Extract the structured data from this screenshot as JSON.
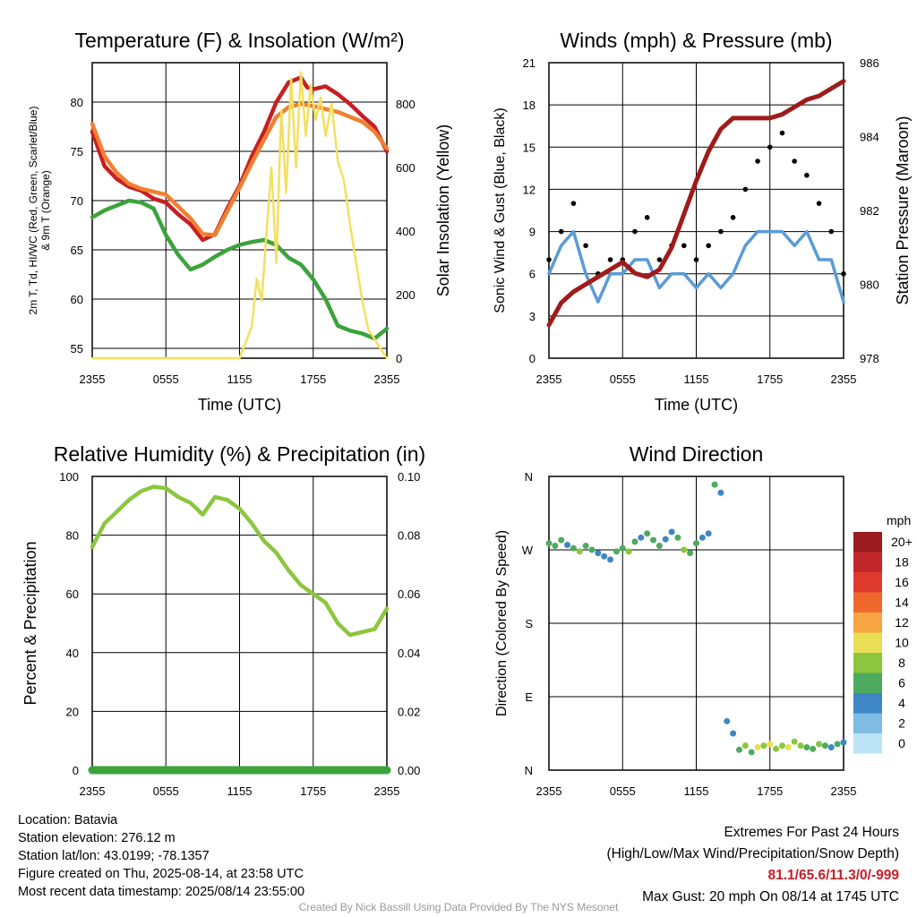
{
  "chart_data": [
    {
      "type": "line",
      "title": "Temperature (F) & Insolation (W/m²)",
      "xlabel": "Time (UTC)",
      "ylabel": "2m T, Td, HI/WC (Red, Green, Scarlet/Blue) & 9m T (Orange)",
      "y2label": "Solar Insolation (Yellow)",
      "xticks": [
        "2355",
        "0555",
        "1155",
        "1755",
        "2355"
      ],
      "yticks": [
        55,
        60,
        65,
        70,
        75,
        80
      ],
      "y2ticks": [
        0,
        200,
        400,
        600,
        800
      ],
      "ylim": [
        54,
        84
      ],
      "y2lim": [
        0,
        930
      ],
      "xlim": [
        0,
        24
      ],
      "series": [
        {
          "name": "2m T",
          "color": "#c81e23",
          "x": [
            0,
            1,
            2,
            3,
            4,
            5,
            6,
            7,
            8,
            9,
            10,
            11,
            12,
            13,
            14,
            15,
            16,
            17,
            17.5,
            18,
            19,
            20,
            21,
            22,
            23,
            24
          ],
          "values": [
            77,
            73.5,
            72.2,
            71.4,
            71,
            70.2,
            69.8,
            68.6,
            67.6,
            66,
            66.6,
            69.2,
            71.5,
            74.5,
            77,
            80,
            82,
            82.5,
            81.5,
            81.3,
            81.6,
            80.8,
            79.8,
            78.6,
            77.5,
            75
          ]
        },
        {
          "name": "9m T",
          "color": "#f08030",
          "x": [
            0,
            1,
            2,
            3,
            4,
            5,
            6,
            7,
            8,
            9,
            10,
            11,
            12,
            13,
            14,
            15,
            16,
            17,
            18,
            19,
            20,
            21,
            22,
            23,
            24
          ],
          "values": [
            77.8,
            74.5,
            72.8,
            71.7,
            71.2,
            70.9,
            70.6,
            69.4,
            68.2,
            66.6,
            66.5,
            68.9,
            71.3,
            73.8,
            76.2,
            78.5,
            79.5,
            79.8,
            79.6,
            79.3,
            79,
            78.5,
            78,
            77,
            75.3
          ]
        },
        {
          "name": "Td",
          "color": "#3ca33c",
          "x": [
            0,
            1,
            2,
            3,
            4,
            5,
            6,
            7,
            8,
            9,
            10,
            11,
            12,
            13,
            14,
            15,
            16,
            17,
            18,
            19,
            20,
            21,
            22,
            23,
            24
          ],
          "values": [
            68.3,
            69,
            69.5,
            70,
            69.8,
            69.2,
            66.5,
            64.5,
            63,
            63.5,
            64.3,
            65,
            65.5,
            65.8,
            66,
            65.5,
            64.2,
            63.5,
            62,
            60,
            57.3,
            56.8,
            56.5,
            56,
            57
          ]
        },
        {
          "name": "Solar Insolation",
          "axis": "y2",
          "color": "#f4e060",
          "x": [
            0,
            1,
            2,
            3,
            4,
            5,
            6,
            7,
            8,
            9,
            10,
            11,
            12,
            13,
            13.4,
            13.8,
            14.2,
            14.6,
            15,
            15.4,
            15.8,
            16.2,
            16.6,
            17,
            17.4,
            17.8,
            18.2,
            18.6,
            19,
            19.5,
            20,
            20.5,
            21,
            21.5,
            22,
            22.5,
            23,
            23.5,
            24
          ],
          "values": [
            0,
            0,
            0,
            0,
            0,
            0,
            0,
            0,
            0,
            0,
            0,
            0,
            0,
            100,
            250,
            180,
            400,
            600,
            300,
            780,
            520,
            880,
            600,
            900,
            700,
            860,
            750,
            820,
            700,
            800,
            620,
            560,
            420,
            300,
            180,
            90,
            60,
            30,
            0
          ]
        }
      ]
    },
    {
      "type": "scatter",
      "title": "Winds (mph) & Pressure (mb)",
      "xlabel": "Time (UTC)",
      "ylabel": "Sonic Wind & Gust (Blue, Black)",
      "y2label": "Station Pressure (Maroon)",
      "xticks": [
        "2355",
        "0555",
        "1155",
        "1755",
        "2355"
      ],
      "yticks": [
        0,
        3,
        6,
        9,
        12,
        15,
        18,
        21
      ],
      "y2ticks": [
        978,
        980,
        982,
        984,
        986
      ],
      "ylim": [
        0,
        21
      ],
      "y2lim": [
        978,
        986
      ],
      "xlim": [
        0,
        24
      ],
      "series": [
        {
          "name": "Sonic Wind",
          "color": "#5a9bd5",
          "x": [
            0,
            1,
            2,
            3,
            4,
            5,
            6,
            7,
            8,
            9,
            10,
            11,
            12,
            13,
            14,
            15,
            16,
            17,
            18,
            19,
            20,
            21,
            22,
            23,
            24
          ],
          "values": [
            6,
            8,
            9,
            6,
            4,
            6,
            6,
            7,
            7,
            5,
            6,
            6,
            5,
            6,
            5,
            6,
            8,
            9,
            9,
            9,
            8,
            9,
            7,
            7,
            4
          ]
        },
        {
          "name": "Gust",
          "color": "#000000",
          "x": [
            0,
            1,
            2,
            3,
            4,
            5,
            6,
            7,
            8,
            9,
            10,
            11,
            12,
            13,
            14,
            15,
            16,
            17,
            18,
            19,
            20,
            21,
            22,
            23,
            24
          ],
          "values": [
            7,
            9,
            11,
            8,
            6,
            7,
            7,
            9,
            10,
            7,
            8,
            8,
            7,
            8,
            9,
            10,
            12,
            14,
            15,
            16,
            14,
            13,
            11,
            9,
            6
          ]
        },
        {
          "name": "Station Pressure",
          "axis": "y2",
          "color": "#a01a1a",
          "x": [
            0,
            1,
            2,
            3,
            4,
            5,
            6,
            7,
            8,
            9,
            10,
            11,
            12,
            13,
            14,
            15,
            16,
            17,
            18,
            19,
            20,
            21,
            22,
            23,
            24
          ],
          "values": [
            978.9,
            979.5,
            979.8,
            980,
            980.2,
            980.4,
            980.6,
            980.3,
            980.2,
            980.4,
            981,
            981.9,
            982.8,
            983.6,
            984.2,
            984.5,
            984.5,
            984.5,
            984.5,
            984.6,
            984.8,
            985,
            985.1,
            985.3,
            985.5
          ]
        }
      ]
    },
    {
      "type": "line",
      "title": "Relative Humidity (%) & Precipitation (in)",
      "xlabel": "",
      "ylabel": "Percent & Precipitation",
      "xticks": [
        "2355",
        "0555",
        "1155",
        "1755",
        "2355"
      ],
      "yticks": [
        0,
        20,
        40,
        60,
        80,
        100
      ],
      "y2ticks": [
        "0.00",
        "0.02",
        "0.04",
        "0.06",
        "0.08",
        "0.10"
      ],
      "ylim": [
        0,
        100
      ],
      "y2lim": [
        0,
        0.1
      ],
      "xlim": [
        0,
        24
      ],
      "series": [
        {
          "name": "Relative Humidity",
          "color": "#8cc63e",
          "x": [
            0,
            1,
            2,
            3,
            4,
            5,
            6,
            7,
            8,
            9,
            10,
            11,
            12,
            13,
            14,
            15,
            16,
            17,
            18,
            19,
            20,
            21,
            22,
            23,
            24
          ],
          "values": [
            76,
            84,
            88,
            92,
            95,
            96.5,
            96,
            93,
            91,
            87,
            93,
            92,
            89,
            84,
            78,
            74,
            68,
            63,
            60,
            57,
            50,
            46,
            47,
            48,
            55
          ]
        },
        {
          "name": "Precipitation",
          "axis": "y2",
          "color": "#3ca33c",
          "x": [
            0,
            24
          ],
          "values": [
            0,
            0
          ]
        }
      ]
    },
    {
      "type": "scatter",
      "title": "Wind Direction",
      "xlabel": "",
      "ylabel": "Direction (Colored By Speed)",
      "xticks": [
        "2355",
        "0555",
        "1155",
        "1755",
        "2355"
      ],
      "yticks": [
        "N",
        "E",
        "S",
        "W",
        "N"
      ],
      "ylim": [
        0,
        360
      ],
      "xlim": [
        0,
        24
      ],
      "colorbar": {
        "title": "mph",
        "labels": [
          "20+",
          "18",
          "16",
          "14",
          "12",
          "10",
          "8",
          "6",
          "4",
          "2",
          "0"
        ],
        "colors": [
          "#9b1b1e",
          "#c0262a",
          "#df3a2e",
          "#f0682e",
          "#f7a443",
          "#eadf54",
          "#8cc63e",
          "#4daa5f",
          "#3f86c5",
          "#7fbbe3",
          "#bde3f6"
        ]
      },
      "series": [
        {
          "name": "Direction",
          "x": [
            0,
            0.5,
            1,
            1.5,
            2,
            2.5,
            3,
            3.5,
            4,
            4.5,
            5,
            5.5,
            6,
            6.5,
            7,
            7.5,
            8,
            8.5,
            9,
            9.5,
            10,
            10.5,
            11,
            11.5,
            12,
            12.5,
            13,
            13.5,
            14,
            14.5,
            15,
            15.5,
            16,
            16.5,
            17,
            17.5,
            18,
            18.5,
            19,
            19.5,
            20,
            20.5,
            21,
            21.5,
            22,
            22.5,
            23,
            23.5,
            24
          ],
          "values": [
            278,
            275,
            282,
            276,
            272,
            268,
            275,
            270,
            266,
            262,
            258,
            268,
            272,
            268,
            280,
            285,
            290,
            282,
            275,
            283,
            292,
            285,
            270,
            266,
            278,
            285,
            290,
            350,
            340,
            60,
            45,
            25,
            30,
            22,
            28,
            30,
            32,
            26,
            30,
            28,
            35,
            30,
            28,
            26,
            32,
            30,
            28,
            32,
            34
          ],
          "speeds": [
            6,
            7,
            6,
            5,
            6,
            8,
            7,
            6,
            5,
            4,
            5,
            6,
            7,
            8,
            6,
            5,
            6,
            7,
            6,
            5,
            4,
            6,
            8,
            7,
            6,
            5,
            4,
            6,
            5,
            4,
            5,
            6,
            8,
            6,
            10,
            9,
            10,
            8,
            9,
            10,
            8,
            9,
            6,
            7,
            8,
            6,
            5,
            6,
            4
          ]
        }
      ]
    }
  ],
  "info": {
    "location": "Location: Batavia",
    "elevation": "Station elevation: 276.12 m",
    "latlon": "Station lat/lon: 43.0199; -78.1357",
    "created": "Figure created on Thu, 2025-08-14, at 23:58 UTC",
    "recent": "Most recent data timestamp: 2025/08/14 23:55:00"
  },
  "extremes": {
    "line1": "Extremes For Past 24 Hours",
    "line2": "(High/Low/Max Wind/Precipitation/Snow Depth)",
    "values": "81.1/65.6/11.3/0/-999",
    "gust": "Max Gust: 20 mph On 08/14 at 1745 UTC"
  },
  "footer": "Created By Nick Bassill Using Data Provided By The NYS Mesonet"
}
